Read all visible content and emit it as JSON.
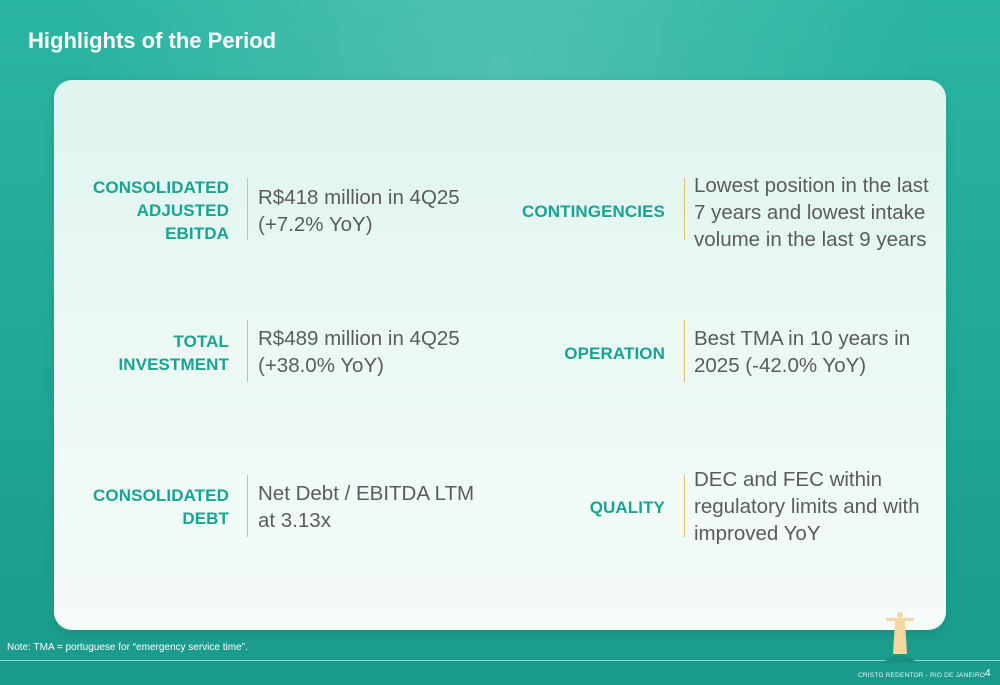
{
  "slide": {
    "title": "Highlights of the Period",
    "note": "Note: TMA = portuguese for “emergency service time”.",
    "footer_caption": "CRISTO REDENTOR - RIO DE JANEIRO",
    "page_number": "4"
  },
  "highlights": [
    {
      "label_lines": [
        "CONSOLIDATED",
        "ADJUSTED",
        "EBITDA"
      ],
      "value_lines": [
        "R$418 million in 4Q25",
        "(+7.2% YoY)"
      ]
    },
    {
      "label_lines": [
        "CONTINGENCIES"
      ],
      "value_lines": [
        "Lowest position in the last",
        "7 years and lowest intake",
        "volume in the last 9 years"
      ]
    },
    {
      "label_lines": [
        "TOTAL",
        "INVESTMENT"
      ],
      "value_lines": [
        "R$489 million in 4Q25",
        "(+38.0% YoY)"
      ]
    },
    {
      "label_lines": [
        "OPERATION"
      ],
      "value_lines": [
        "Best TMA in 10 years in",
        "2025 (-42.0% YoY)"
      ]
    },
    {
      "label_lines": [
        "CONSOLIDATED",
        "DEBT"
      ],
      "value_lines": [
        "Net Debt / EBITDA LTM",
        "at 3.13x"
      ]
    },
    {
      "label_lines": [
        "QUALITY"
      ],
      "value_lines": [
        "DEC and FEC within",
        "regulatory limits and with",
        "improved YoY"
      ]
    }
  ],
  "colors": {
    "background": "#1fa696",
    "label": "#16a493",
    "divider": "#e8b86b",
    "value_text": "#5b5b5b"
  }
}
